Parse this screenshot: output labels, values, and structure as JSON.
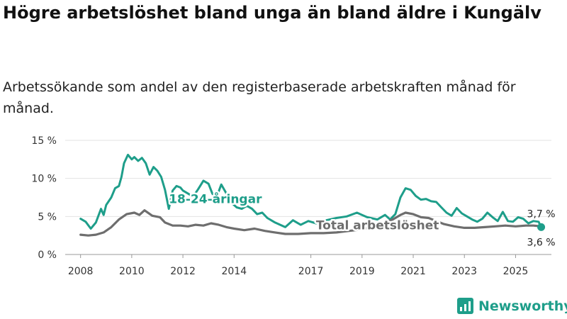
{
  "title": "Högre arbetslöshet bland unga än bland äldre i Kungälv",
  "subtitle": "Arbetssökande som andel av den registerbaserade arbetskraften månad för månad.",
  "brand": {
    "name": "Newsworthy",
    "icon": "newsworthy-logo-icon"
  },
  "colors": {
    "youth": "#1e9e8a",
    "total": "#6e6e6e",
    "grid": "#e3e3e3"
  },
  "chart_data": {
    "type": "line",
    "title": "Högre arbetslöshet bland unga än bland äldre i Kungälv",
    "subtitle": "Arbetssökande som andel av den registerbaserade arbetskraften månad för månad.",
    "xlabel": "",
    "ylabel": "",
    "xlim": [
      2007.4,
      2026.4
    ],
    "ylim": [
      0,
      15
    ],
    "grid": true,
    "x_ticks": [
      2008,
      2010,
      2012,
      2014,
      2017,
      2019,
      2021,
      2023,
      2025
    ],
    "x_tick_labels": [
      "2008",
      "2010",
      "2012",
      "2014",
      "2017",
      "2019",
      "2021",
      "2023",
      "2025"
    ],
    "y_ticks": [
      0,
      5,
      10,
      15
    ],
    "y_tick_labels": [
      "0 %",
      "5 %",
      "10 %",
      "15 %"
    ],
    "series": [
      {
        "name": "18-24-åringar",
        "label": "18-24-åringar",
        "color": "#1e9e8a",
        "points": [
          [
            2008.0,
            4.7
          ],
          [
            2008.2,
            4.3
          ],
          [
            2008.4,
            3.4
          ],
          [
            2008.6,
            4.2
          ],
          [
            2008.8,
            6.0
          ],
          [
            2008.9,
            5.2
          ],
          [
            2009.0,
            6.5
          ],
          [
            2009.2,
            7.5
          ],
          [
            2009.35,
            8.7
          ],
          [
            2009.5,
            9.0
          ],
          [
            2009.6,
            10.2
          ],
          [
            2009.7,
            12.0
          ],
          [
            2009.85,
            13.1
          ],
          [
            2010.0,
            12.5
          ],
          [
            2010.1,
            12.8
          ],
          [
            2010.25,
            12.3
          ],
          [
            2010.4,
            12.7
          ],
          [
            2010.55,
            12.0
          ],
          [
            2010.7,
            10.5
          ],
          [
            2010.85,
            11.5
          ],
          [
            2011.0,
            11.0
          ],
          [
            2011.15,
            10.2
          ],
          [
            2011.3,
            8.5
          ],
          [
            2011.45,
            6.0
          ],
          [
            2011.6,
            8.4
          ],
          [
            2011.75,
            9.0
          ],
          [
            2011.9,
            8.8
          ],
          [
            2012.0,
            8.4
          ],
          [
            2012.2,
            8.0
          ],
          [
            2012.4,
            7.6
          ],
          [
            2012.6,
            8.6
          ],
          [
            2012.8,
            9.7
          ],
          [
            2013.0,
            9.3
          ],
          [
            2013.15,
            8.0
          ],
          [
            2013.3,
            7.4
          ],
          [
            2013.5,
            9.2
          ],
          [
            2013.7,
            8.0
          ],
          [
            2013.9,
            6.8
          ],
          [
            2014.1,
            6.2
          ],
          [
            2014.3,
            6.0
          ],
          [
            2014.5,
            6.4
          ],
          [
            2014.7,
            6.0
          ],
          [
            2014.9,
            5.3
          ],
          [
            2015.1,
            5.5
          ],
          [
            2015.3,
            4.8
          ],
          [
            2015.6,
            4.2
          ],
          [
            2016.0,
            3.6
          ],
          [
            2016.3,
            4.5
          ],
          [
            2016.6,
            3.9
          ],
          [
            2016.9,
            4.4
          ],
          [
            2017.2,
            4.1
          ],
          [
            2017.6,
            4.5
          ],
          [
            2018.0,
            4.8
          ],
          [
            2018.4,
            5.0
          ],
          [
            2018.8,
            5.5
          ],
          [
            2019.2,
            4.9
          ],
          [
            2019.6,
            4.6
          ],
          [
            2019.9,
            5.2
          ],
          [
            2020.1,
            4.6
          ],
          [
            2020.3,
            5.3
          ],
          [
            2020.5,
            7.5
          ],
          [
            2020.7,
            8.7
          ],
          [
            2020.9,
            8.5
          ],
          [
            2021.1,
            7.7
          ],
          [
            2021.3,
            7.2
          ],
          [
            2021.5,
            7.3
          ],
          [
            2021.7,
            7.0
          ],
          [
            2021.9,
            6.9
          ],
          [
            2022.1,
            6.2
          ],
          [
            2022.3,
            5.5
          ],
          [
            2022.5,
            5.1
          ],
          [
            2022.7,
            6.1
          ],
          [
            2022.9,
            5.4
          ],
          [
            2023.1,
            5.0
          ],
          [
            2023.3,
            4.6
          ],
          [
            2023.5,
            4.3
          ],
          [
            2023.7,
            4.7
          ],
          [
            2023.9,
            5.5
          ],
          [
            2024.1,
            4.9
          ],
          [
            2024.3,
            4.4
          ],
          [
            2024.5,
            5.6
          ],
          [
            2024.7,
            4.4
          ],
          [
            2024.9,
            4.3
          ],
          [
            2025.1,
            4.9
          ],
          [
            2025.3,
            4.7
          ],
          [
            2025.5,
            4.1
          ],
          [
            2025.7,
            4.4
          ],
          [
            2025.9,
            4.3
          ],
          [
            2026.0,
            3.6
          ]
        ],
        "end_label": "3,6 %"
      },
      {
        "name": "Total arbetslöshet",
        "label": "Total arbetslöshet",
        "color": "#6e6e6e",
        "points": [
          [
            2008.0,
            2.6
          ],
          [
            2008.3,
            2.5
          ],
          [
            2008.6,
            2.6
          ],
          [
            2008.9,
            2.9
          ],
          [
            2009.2,
            3.6
          ],
          [
            2009.5,
            4.6
          ],
          [
            2009.8,
            5.3
          ],
          [
            2010.1,
            5.5
          ],
          [
            2010.3,
            5.2
          ],
          [
            2010.5,
            5.8
          ],
          [
            2010.8,
            5.1
          ],
          [
            2011.1,
            4.9
          ],
          [
            2011.3,
            4.2
          ],
          [
            2011.6,
            3.8
          ],
          [
            2011.9,
            3.8
          ],
          [
            2012.2,
            3.7
          ],
          [
            2012.5,
            3.9
          ],
          [
            2012.8,
            3.8
          ],
          [
            2013.1,
            4.1
          ],
          [
            2013.4,
            3.9
          ],
          [
            2013.7,
            3.6
          ],
          [
            2014.0,
            3.4
          ],
          [
            2014.4,
            3.2
          ],
          [
            2014.8,
            3.4
          ],
          [
            2015.2,
            3.1
          ],
          [
            2015.6,
            2.9
          ],
          [
            2016.0,
            2.7
          ],
          [
            2016.5,
            2.7
          ],
          [
            2017.0,
            2.8
          ],
          [
            2017.5,
            2.8
          ],
          [
            2018.0,
            2.9
          ],
          [
            2018.5,
            3.1
          ],
          [
            2019.0,
            3.3
          ],
          [
            2019.5,
            3.7
          ],
          [
            2019.9,
            4.2
          ],
          [
            2020.2,
            4.6
          ],
          [
            2020.5,
            5.2
          ],
          [
            2020.7,
            5.5
          ],
          [
            2021.0,
            5.3
          ],
          [
            2021.3,
            4.9
          ],
          [
            2021.6,
            4.8
          ],
          [
            2021.9,
            4.4
          ],
          [
            2022.2,
            4.0
          ],
          [
            2022.6,
            3.7
          ],
          [
            2023.0,
            3.5
          ],
          [
            2023.4,
            3.5
          ],
          [
            2023.8,
            3.6
          ],
          [
            2024.2,
            3.7
          ],
          [
            2024.6,
            3.8
          ],
          [
            2025.0,
            3.7
          ],
          [
            2025.4,
            3.8
          ],
          [
            2025.7,
            3.8
          ],
          [
            2026.0,
            3.7
          ]
        ],
        "end_label": "3,7 %"
      }
    ]
  }
}
